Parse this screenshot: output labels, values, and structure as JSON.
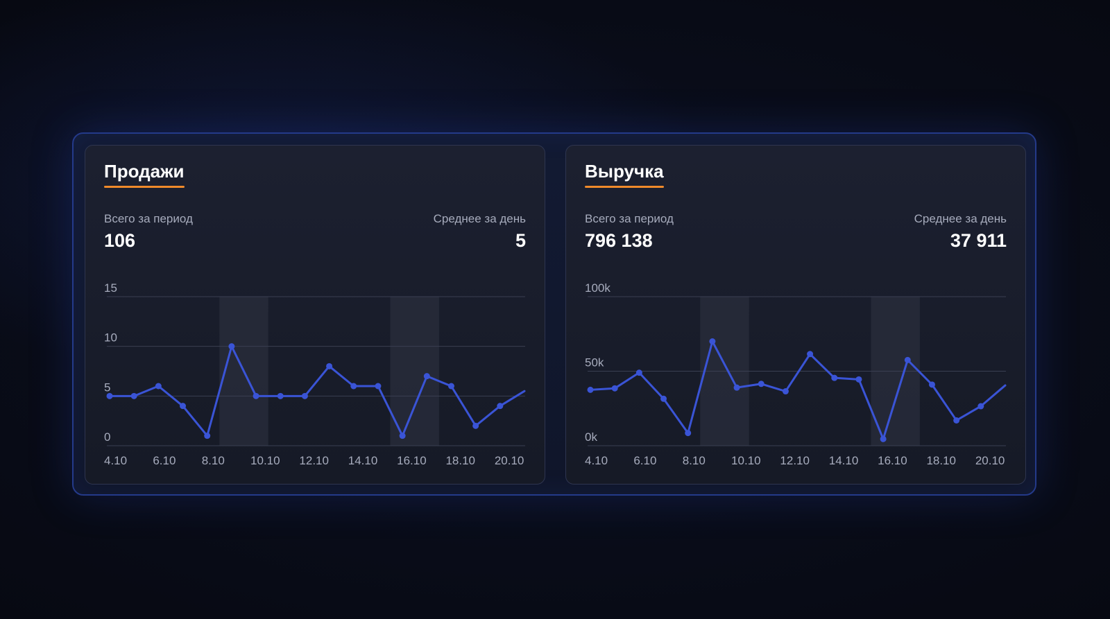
{
  "cards": [
    {
      "title": "Продажи",
      "total_label": "Всего за период",
      "total_value": "106",
      "avg_label": "Среднее за день",
      "avg_value": "5"
    },
    {
      "title": "Выручка",
      "total_label": "Всего за период",
      "total_value": "796 138",
      "avg_label": "Среднее за день",
      "avg_value": "37 911"
    }
  ],
  "colors": {
    "line": "#3a54d6",
    "accent_underline": "#f08a2a",
    "grid": "#3a3f52",
    "highlight_band": "#2a2e3c"
  },
  "chart_data": [
    {
      "type": "line",
      "x": [
        "4.10",
        "5.10",
        "6.10",
        "7.10",
        "8.10",
        "9.10",
        "10.10",
        "11.10",
        "12.10",
        "13.10",
        "14.10",
        "15.10",
        "16.10",
        "17.10",
        "18.10",
        "19.10",
        "20.10",
        "21.10"
      ],
      "x_tick_labels": [
        "4.10",
        "6.10",
        "8.10",
        "10.10",
        "12.10",
        "14.10",
        "16.10",
        "18.10",
        "20.10"
      ],
      "values": [
        5,
        5,
        6,
        4,
        1,
        10,
        5,
        5,
        5,
        8,
        6,
        6,
        1,
        7,
        6,
        2,
        4,
        5.5
      ],
      "y_ticks": [
        0,
        5,
        10,
        15
      ],
      "y_tick_labels": [
        "0",
        "5",
        "10",
        "15"
      ],
      "ylim": [
        0,
        15
      ],
      "highlight_ranges": [
        [
          "9.10",
          "10.10"
        ],
        [
          "16.10",
          "17.10"
        ]
      ],
      "grid": true
    },
    {
      "type": "line",
      "x": [
        "4.10",
        "5.10",
        "6.10",
        "7.10",
        "8.10",
        "9.10",
        "10.10",
        "11.10",
        "12.10",
        "13.10",
        "14.10",
        "15.10",
        "16.10",
        "17.10",
        "18.10",
        "19.10",
        "20.10",
        "21.10"
      ],
      "x_tick_labels": [
        "4.10",
        "6.10",
        "8.10",
        "10.10",
        "12.10",
        "14.10",
        "16.10",
        "18.10",
        "20.10"
      ],
      "values": [
        37500,
        38500,
        49000,
        31500,
        8500,
        70000,
        39000,
        41500,
        36500,
        61500,
        45500,
        44500,
        4500,
        57500,
        41000,
        17000,
        26500,
        40500
      ],
      "y_ticks": [
        0,
        50000,
        100000
      ],
      "y_tick_labels": [
        "0k",
        "50k",
        "100k"
      ],
      "ylim": [
        0,
        100000
      ],
      "highlight_ranges": [
        [
          "9.10",
          "10.10"
        ],
        [
          "16.10",
          "17.10"
        ]
      ],
      "grid": true
    }
  ]
}
